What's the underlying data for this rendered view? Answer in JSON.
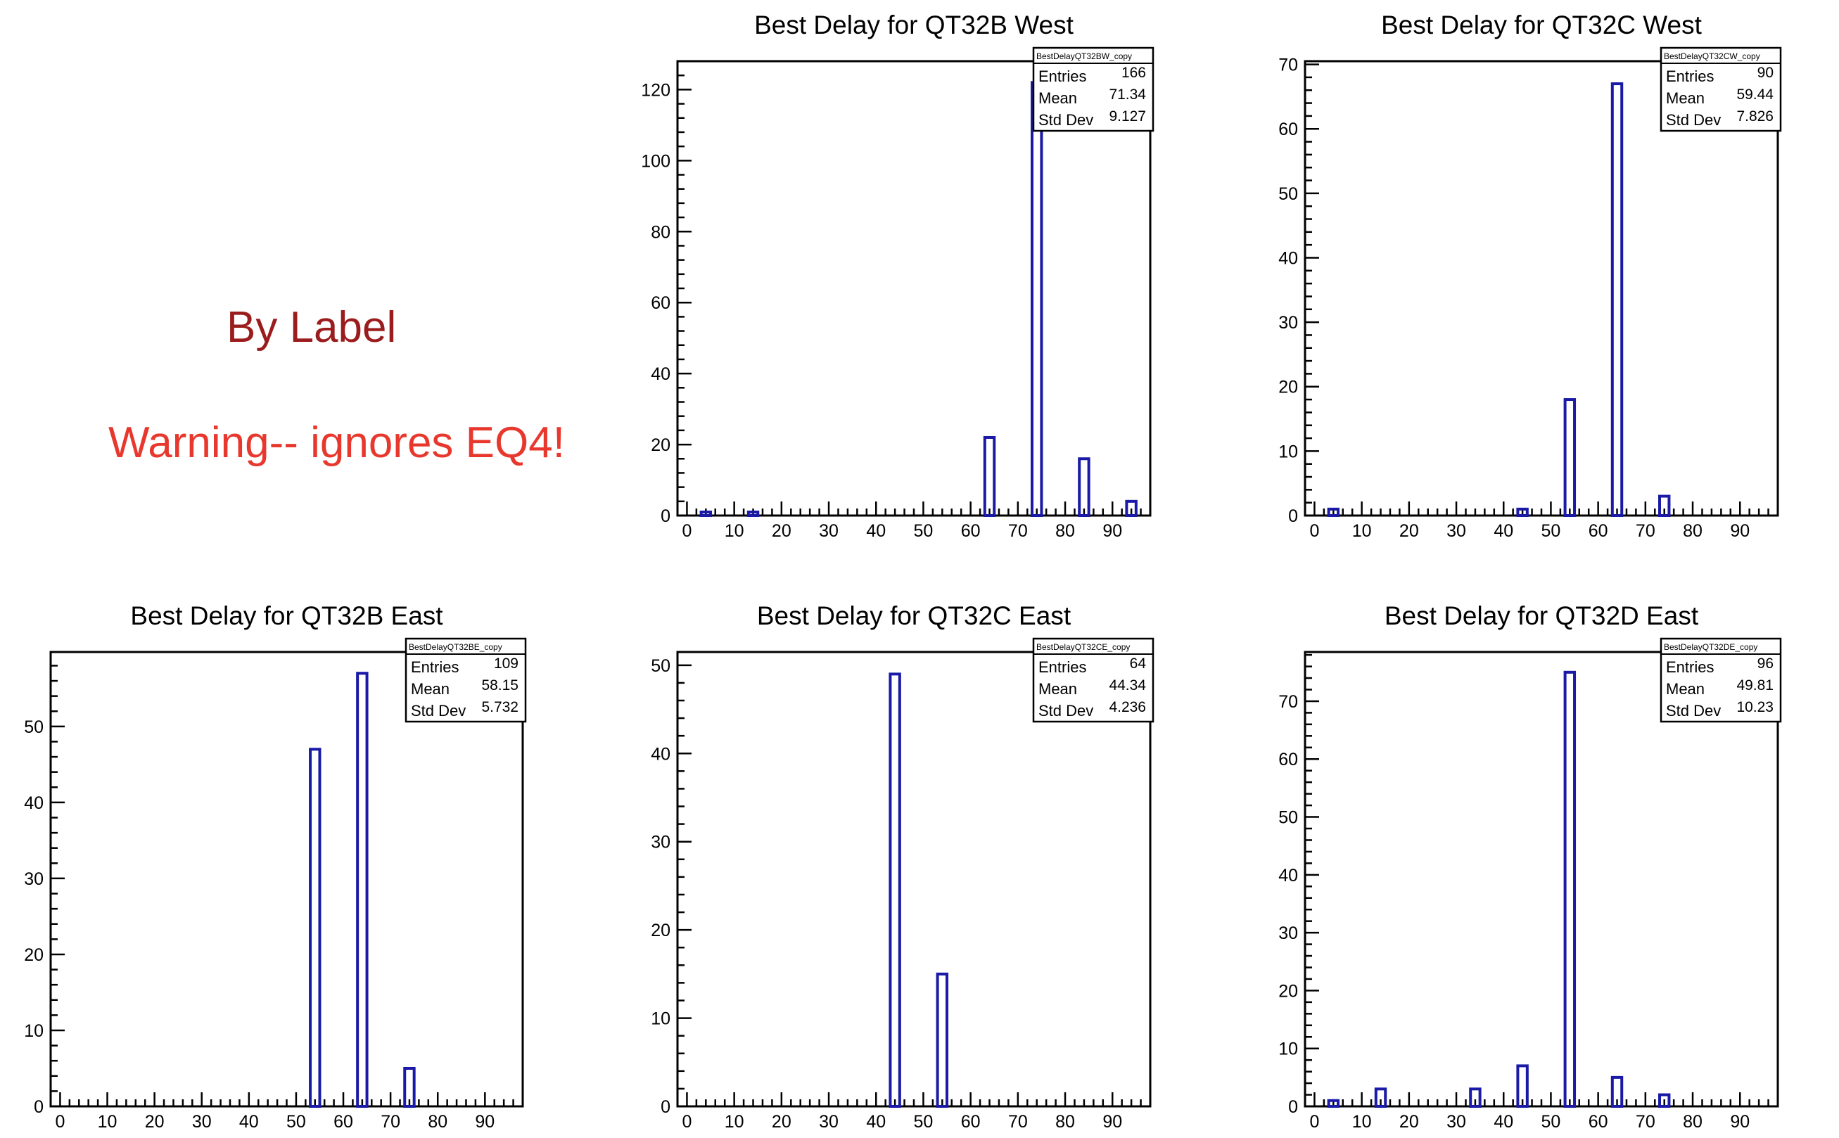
{
  "notes": {
    "title": "By Label",
    "title_color": "#9b1c1c",
    "warning": "Warning-- ignores EQ4!",
    "warning_color": "#e8382e"
  },
  "bar_color": "#1a1aa6",
  "chart_data": [
    {
      "type": "bar",
      "title": "Best Delay for QT32B West",
      "stats": {
        "name": "BestDelayQT32BW_copy",
        "entries": "166",
        "mean": "71.34",
        "std_dev": "9.127"
      },
      "x_ticks": [
        0,
        10,
        20,
        30,
        40,
        50,
        60,
        70,
        80,
        90
      ],
      "xlim": [
        -2,
        98
      ],
      "ylim": [
        0,
        128
      ],
      "y_ticks": [
        0,
        20,
        40,
        60,
        80,
        100,
        120
      ],
      "bars": [
        {
          "x": 4,
          "value": 1
        },
        {
          "x": 14,
          "value": 1
        },
        {
          "x": 64,
          "value": 22
        },
        {
          "x": 74,
          "value": 122
        },
        {
          "x": 84,
          "value": 16
        },
        {
          "x": 94,
          "value": 4
        }
      ]
    },
    {
      "type": "bar",
      "title": "Best Delay for QT32C West",
      "stats": {
        "name": "BestDelayQT32CW_copy",
        "entries": "90",
        "mean": "59.44",
        "std_dev": "7.826"
      },
      "x_ticks": [
        0,
        10,
        20,
        30,
        40,
        50,
        60,
        70,
        80,
        90
      ],
      "xlim": [
        -2,
        98
      ],
      "ylim": [
        0,
        70.5
      ],
      "y_ticks": [
        0,
        10,
        20,
        30,
        40,
        50,
        60,
        70
      ],
      "bars": [
        {
          "x": 4,
          "value": 1
        },
        {
          "x": 44,
          "value": 1
        },
        {
          "x": 54,
          "value": 18
        },
        {
          "x": 64,
          "value": 67
        },
        {
          "x": 74,
          "value": 3
        }
      ]
    },
    {
      "type": "bar",
      "title": "Best Delay for QT32B East",
      "stats": {
        "name": "BestDelayQT32BE_copy",
        "entries": "109",
        "mean": "58.15",
        "std_dev": "5.732"
      },
      "x_ticks": [
        0,
        10,
        20,
        30,
        40,
        50,
        60,
        70,
        80,
        90
      ],
      "xlim": [
        -2,
        98
      ],
      "ylim": [
        0,
        59.8
      ],
      "y_ticks": [
        0,
        10,
        20,
        30,
        40,
        50
      ],
      "bars": [
        {
          "x": 54,
          "value": 47
        },
        {
          "x": 64,
          "value": 57
        },
        {
          "x": 74,
          "value": 5
        }
      ]
    },
    {
      "type": "bar",
      "title": "Best Delay for QT32C East",
      "stats": {
        "name": "BestDelayQT32CE_copy",
        "entries": "64",
        "mean": "44.34",
        "std_dev": "4.236"
      },
      "x_ticks": [
        0,
        10,
        20,
        30,
        40,
        50,
        60,
        70,
        80,
        90
      ],
      "xlim": [
        -2,
        98
      ],
      "ylim": [
        0,
        51.5
      ],
      "y_ticks": [
        0,
        10,
        20,
        30,
        40,
        50
      ],
      "bars": [
        {
          "x": 44,
          "value": 49
        },
        {
          "x": 54,
          "value": 15
        }
      ]
    },
    {
      "type": "bar",
      "title": "Best Delay for QT32D East",
      "stats": {
        "name": "BestDelayQT32DE_copy",
        "entries": "96",
        "mean": "49.81",
        "std_dev": "10.23"
      },
      "x_ticks": [
        0,
        10,
        20,
        30,
        40,
        50,
        60,
        70,
        80,
        90
      ],
      "xlim": [
        -2,
        98
      ],
      "ylim": [
        0,
        78.5
      ],
      "y_ticks": [
        0,
        10,
        20,
        30,
        40,
        50,
        60,
        70
      ],
      "bars": [
        {
          "x": 4,
          "value": 1
        },
        {
          "x": 14,
          "value": 3
        },
        {
          "x": 34,
          "value": 3
        },
        {
          "x": 44,
          "value": 7
        },
        {
          "x": 54,
          "value": 75
        },
        {
          "x": 64,
          "value": 5
        },
        {
          "x": 74,
          "value": 2
        }
      ]
    }
  ]
}
